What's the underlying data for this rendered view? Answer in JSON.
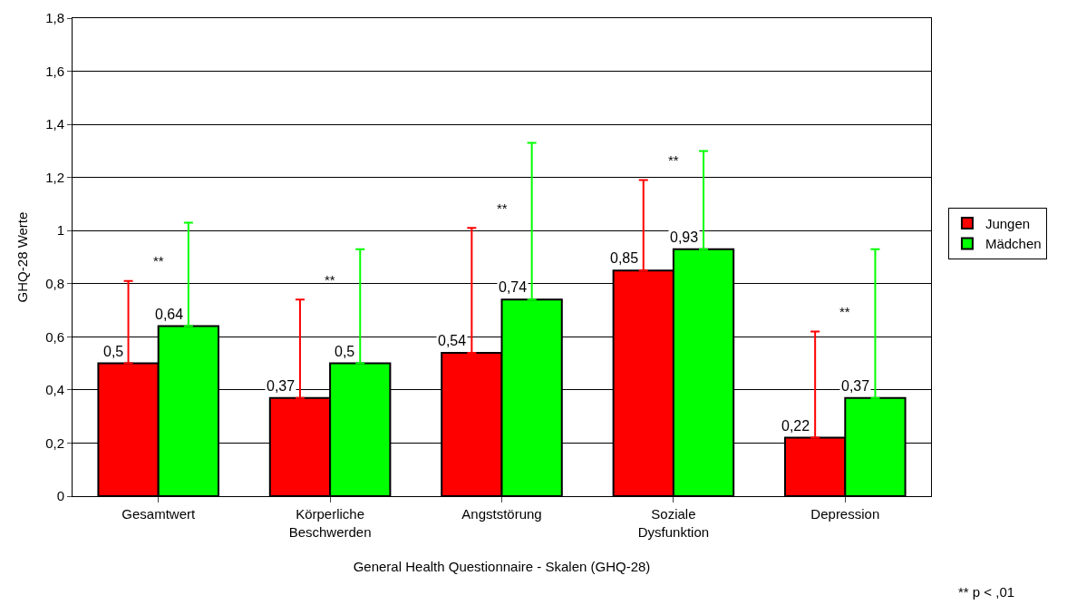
{
  "chart_data": {
    "type": "bar",
    "xlabel": "General Health Questionnaire - Skalen (GHQ-28)",
    "ylabel": "GHQ-28 Werte",
    "categories": [
      "Gesamtwert",
      "Körperliche Beschwerden",
      "Angststörung",
      "Soziale Dysfunktion",
      "Depression"
    ],
    "series": [
      {
        "name": "Jungen",
        "color": "#ff0000",
        "values": [
          0.5,
          0.37,
          0.54,
          0.85,
          0.22
        ],
        "value_labels": [
          "0,5",
          "0,37",
          "0,54",
          "0,85",
          "0,22"
        ],
        "errors": [
          [
            0.5,
            0.81
          ],
          [
            0.37,
            0.74
          ],
          [
            0.54,
            1.01
          ],
          [
            0.85,
            1.19
          ],
          [
            0.22,
            0.62
          ]
        ]
      },
      {
        "name": "Mädchen",
        "color": "#00ff00",
        "values": [
          0.64,
          0.5,
          0.74,
          0.93,
          0.37
        ],
        "value_labels": [
          "0,64",
          "0,5",
          "0,74",
          "0,93",
          "0,37"
        ],
        "errors": [
          [
            0.64,
            1.03
          ],
          [
            0.5,
            0.93
          ],
          [
            0.74,
            1.33
          ],
          [
            0.93,
            1.3
          ],
          [
            0.37,
            0.93
          ]
        ]
      }
    ],
    "ylim": [
      0,
      1.8
    ],
    "yticks": [
      0,
      {
        "value": 0.2,
        "label": "0,2"
      },
      {
        "value": 0.4,
        "label": "0,4"
      },
      {
        "value": 0.6,
        "label": "0,6"
      },
      {
        "value": 0.8,
        "label": "0,8"
      },
      1,
      {
        "value": 1.2,
        "label": "1,2"
      },
      {
        "value": 1.4,
        "label": "1,4"
      },
      {
        "value": 1.6,
        "label": "1,6"
      },
      {
        "value": 1.8,
        "label": "1,8"
      }
    ],
    "grid": "y",
    "legend": "right",
    "annotations": [
      "**",
      "**",
      "**",
      "**",
      "**",
      "** p < ,01"
    ]
  }
}
